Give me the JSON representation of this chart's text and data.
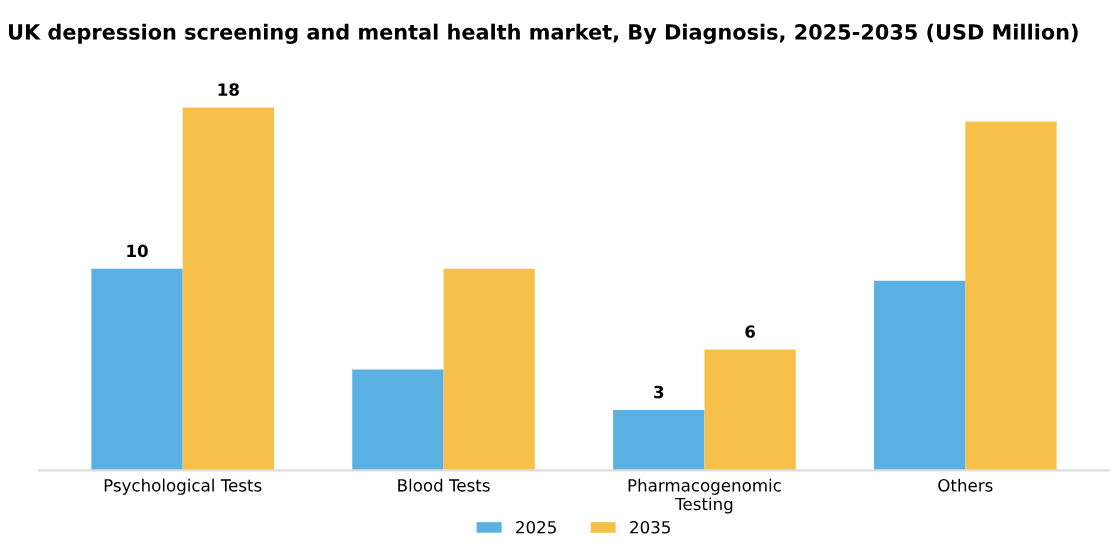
{
  "chart_data": {
    "type": "bar",
    "title": "UK depression screening and mental health market, By Diagnosis, 2025-2035 (USD Million)",
    "categories": [
      "Psychological Tests",
      "Blood Tests",
      "Pharmacogenomic\nTesting",
      "Others"
    ],
    "series": [
      {
        "name": "2025",
        "color": "#5ab0e2",
        "values": [
          10,
          5.0,
          3,
          9.4
        ],
        "value_labels": [
          "10",
          null,
          "3",
          null
        ]
      },
      {
        "name": "2035",
        "color": "#f7c04a",
        "values": [
          18,
          10.0,
          6,
          17.3
        ],
        "value_labels": [
          "18",
          null,
          "6",
          null
        ]
      }
    ],
    "legend": "bottom"
  }
}
